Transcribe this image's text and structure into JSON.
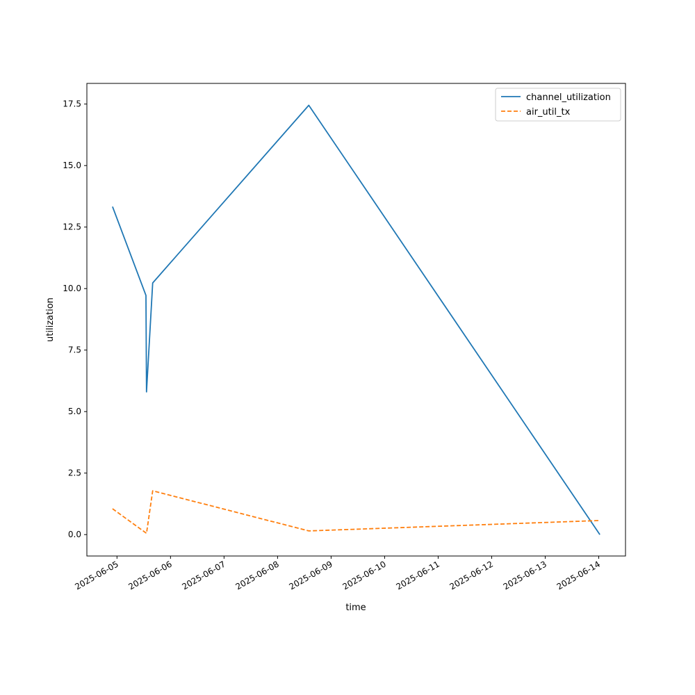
{
  "chart_data": {
    "type": "line",
    "title": "",
    "xlabel": "time",
    "ylabel": "utilization",
    "x_axis_type": "date",
    "xlim": [
      "2025-06-04 10:30",
      "2025-06-14 12:00"
    ],
    "ylim": [
      -0.87,
      18.34
    ],
    "x_ticks": [
      "2025-06-05",
      "2025-06-06",
      "2025-06-07",
      "2025-06-08",
      "2025-06-09",
      "2025-06-10",
      "2025-06-11",
      "2025-06-12",
      "2025-06-13",
      "2025-06-14"
    ],
    "y_ticks": [
      0.0,
      2.5,
      5.0,
      7.5,
      10.0,
      12.5,
      15.0,
      17.5
    ],
    "y_tick_labels": [
      "0.0",
      "2.5",
      "5.0",
      "7.5",
      "10.0",
      "12.5",
      "15.0",
      "17.5"
    ],
    "grid": false,
    "legend_position": "top-right",
    "series": [
      {
        "name": "channel_utilization",
        "color": "#1f77b4",
        "line_style": "solid",
        "x": [
          "2025-06-04 22:00",
          "2025-06-05 13:00",
          "2025-06-05 13:15",
          "2025-06-05 16:00",
          "2025-06-08 14:00",
          "2025-06-14 00:30"
        ],
        "values": [
          13.33,
          9.72,
          5.8,
          10.23,
          17.45,
          0.0
        ]
      },
      {
        "name": "air_util_tx",
        "color": "#ff7f0e",
        "line_style": "dashed",
        "x": [
          "2025-06-04 22:00",
          "2025-06-05 13:15",
          "2025-06-05 16:00",
          "2025-06-08 14:00",
          "2025-06-14 00:00"
        ],
        "values": [
          1.05,
          0.05,
          1.78,
          0.15,
          0.57
        ]
      }
    ]
  }
}
